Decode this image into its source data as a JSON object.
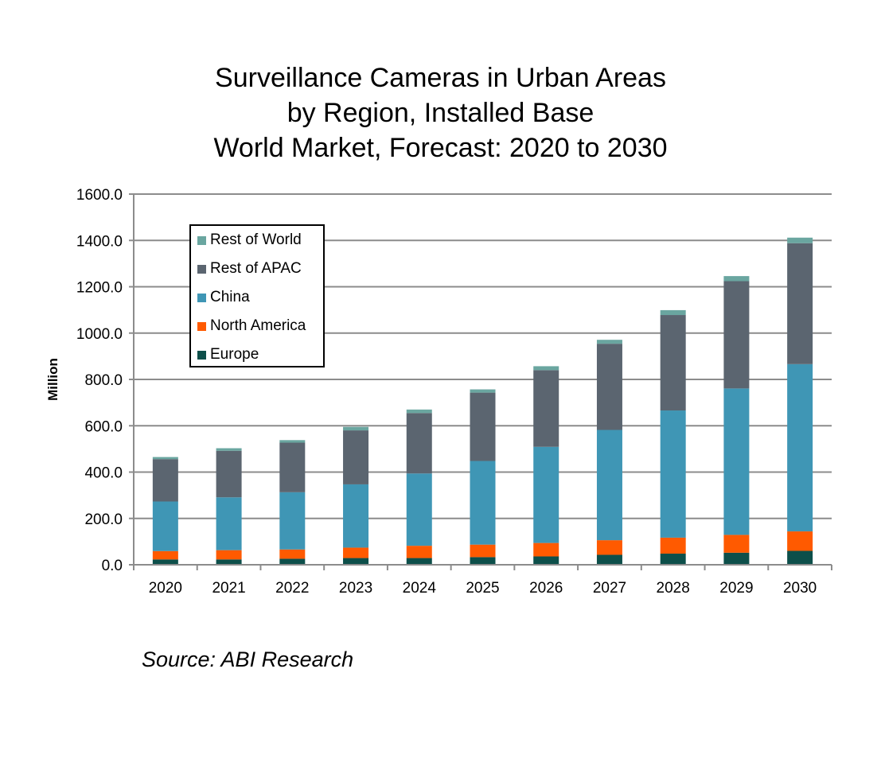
{
  "chart_data": {
    "type": "bar",
    "stacked": true,
    "title_lines": [
      "Surveillance Cameras in Urban Areas",
      "by Region, Installed Base",
      "World Market, Forecast: 2020 to 2030"
    ],
    "xlabel": "",
    "ylabel": "Million",
    "ylim": [
      0,
      1600
    ],
    "yticks": [
      "0.0",
      "200.0",
      "400.0",
      "600.0",
      "800.0",
      "1000.0",
      "1200.0",
      "1400.0",
      "1600.0"
    ],
    "ytick_values": [
      0,
      200,
      400,
      600,
      800,
      1000,
      1200,
      1400,
      1600
    ],
    "grid": true,
    "legend_position": "top-left",
    "categories": [
      "2020",
      "2021",
      "2022",
      "2023",
      "2024",
      "2025",
      "2026",
      "2027",
      "2028",
      "2029",
      "2030"
    ],
    "series": [
      {
        "name": "Europe",
        "color": "#0d4f4a",
        "values": [
          23,
          23,
          26,
          29,
          29,
          33,
          36,
          43,
          48,
          52,
          60
        ]
      },
      {
        "name": "North America",
        "color": "#ff5a00",
        "values": [
          36,
          40,
          40,
          45,
          53,
          54,
          58,
          63,
          69,
          77,
          84
        ]
      },
      {
        "name": "China",
        "color": "#3f96b5",
        "values": [
          214,
          228,
          247,
          273,
          312,
          361,
          415,
          476,
          549,
          632,
          722
        ]
      },
      {
        "name": "Rest of APAC",
        "color": "#5b6570",
        "values": [
          183,
          201,
          214,
          233,
          261,
          295,
          331,
          372,
          412,
          463,
          522
        ]
      },
      {
        "name": "Rest of World",
        "color": "#6aa6a0",
        "values": [
          9,
          11,
          11,
          15,
          15,
          14,
          17,
          17,
          21,
          22,
          24
        ]
      }
    ],
    "legend_order": [
      "Rest of World",
      "Rest of APAC",
      "China",
      "North America",
      "Europe"
    ],
    "source": "Source: ABI Research"
  }
}
